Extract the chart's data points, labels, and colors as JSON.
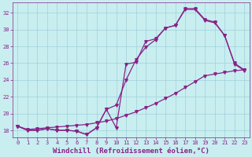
{
  "title": "",
  "xlabel": "Windchill (Refroidissement éolien,°C)",
  "ylabel": "",
  "bg_color": "#c8eef0",
  "grid_color": "#a0d0d8",
  "line_color": "#882288",
  "xlim": [
    -0.5,
    23.5
  ],
  "ylim": [
    17.2,
    33.2
  ],
  "yticks": [
    18,
    20,
    22,
    24,
    26,
    28,
    30,
    32
  ],
  "xticks": [
    0,
    1,
    2,
    3,
    4,
    5,
    6,
    7,
    8,
    9,
    10,
    11,
    12,
    13,
    14,
    15,
    16,
    17,
    18,
    19,
    20,
    21,
    22,
    23
  ],
  "line1_x": [
    0,
    1,
    2,
    3,
    4,
    5,
    6,
    7,
    8,
    9,
    10,
    11,
    12,
    13,
    14,
    15,
    16,
    17,
    18,
    19,
    20,
    21,
    22,
    23
  ],
  "line1_y": [
    18.5,
    18.0,
    18.0,
    18.2,
    18.0,
    18.0,
    17.9,
    17.5,
    18.3,
    20.5,
    18.3,
    25.9,
    26.1,
    28.6,
    28.9,
    30.2,
    30.5,
    32.5,
    32.5,
    31.2,
    30.9,
    29.3,
    26.0,
    25.2
  ],
  "line2_x": [
    0,
    1,
    2,
    3,
    4,
    5,
    6,
    7,
    8,
    9,
    10,
    11,
    12,
    13,
    14,
    15,
    16,
    17,
    18,
    19,
    20,
    21,
    22,
    23
  ],
  "line2_y": [
    18.5,
    18.0,
    18.0,
    18.2,
    18.0,
    18.0,
    17.9,
    17.5,
    18.3,
    20.5,
    21.0,
    24.0,
    26.4,
    27.9,
    28.8,
    30.2,
    30.5,
    32.4,
    32.4,
    31.1,
    30.8,
    29.3,
    25.9,
    25.1
  ],
  "line3_x": [
    0,
    1,
    2,
    3,
    4,
    5,
    6,
    7,
    8,
    9,
    10,
    11,
    12,
    13,
    14,
    15,
    16,
    17,
    18,
    19,
    20,
    21,
    22,
    23
  ],
  "line3_y": [
    18.5,
    18.1,
    18.2,
    18.3,
    18.4,
    18.5,
    18.6,
    18.7,
    18.9,
    19.1,
    19.4,
    19.8,
    20.2,
    20.7,
    21.2,
    21.8,
    22.4,
    23.1,
    23.8,
    24.5,
    24.7,
    24.9,
    25.1,
    25.2
  ],
  "marker": "v",
  "markersize": 2.5,
  "linewidth": 0.9,
  "font_color": "#882288",
  "tick_fontsize": 5.0,
  "xlabel_fontsize": 6.5
}
